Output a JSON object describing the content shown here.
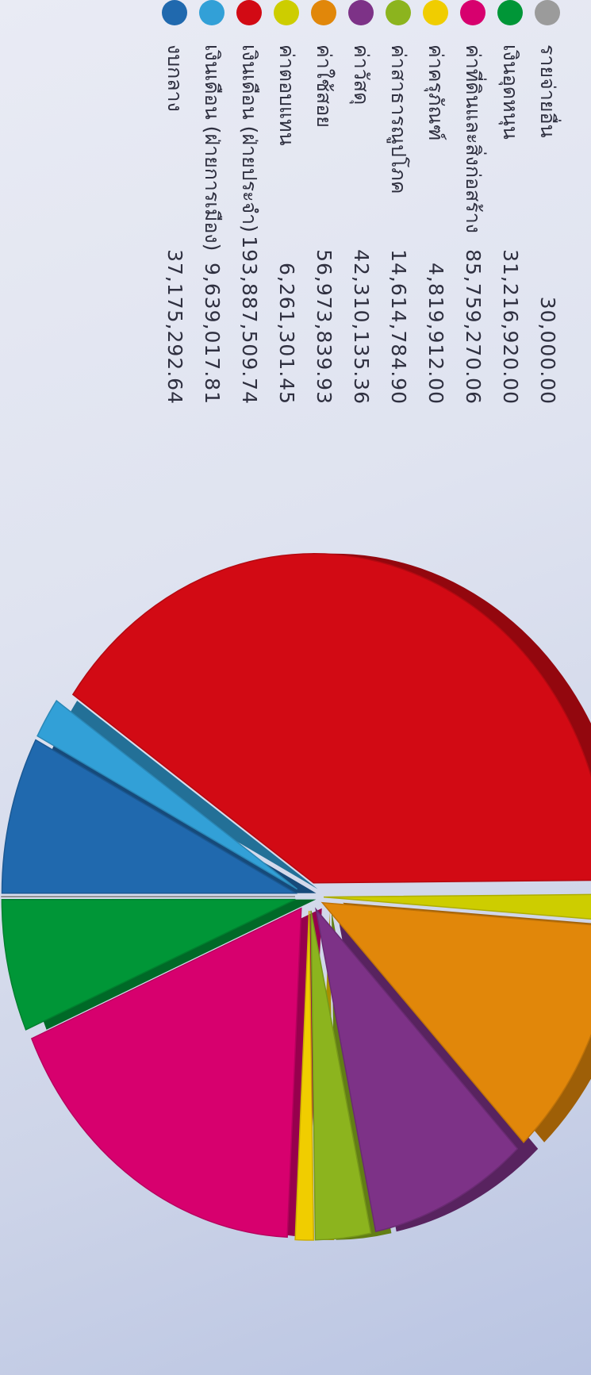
{
  "chart_data": {
    "type": "pie",
    "title": "",
    "legend_position": "right",
    "slices": [
      {
        "label": "งบกลาง",
        "value": 37175292.64,
        "value_text": "37,175,292.64",
        "color": "#2069ae"
      },
      {
        "label": "เงินเดือน (ฝ่ายการเมือง)",
        "value": 9639017.81,
        "value_text": "9,639,017.81",
        "color": "#32a0d7"
      },
      {
        "label": "เงินเดือน (ฝ่ายประจำ)",
        "value": 193887509.74,
        "value_text": "193,887,509.74",
        "color": "#d20a14"
      },
      {
        "label": "ค่าตอบแทน",
        "value": 6261301.45,
        "value_text": "6,261,301.45",
        "color": "#cdcd00"
      },
      {
        "label": "ค่าใช้สอย",
        "value": 56973839.93,
        "value_text": "56,973,839.93",
        "color": "#e1870a"
      },
      {
        "label": "ค่าวัสดุ",
        "value": 42310135.36,
        "value_text": "42,310,135.36",
        "color": "#7d3287"
      },
      {
        "label": "ค่าสาธารณูปโภค",
        "value": 14614784.9,
        "value_text": "14,614,784.90",
        "color": "#8cb41e"
      },
      {
        "label": "ค่าครุภัณฑ์",
        "value": 4819912.0,
        "value_text": "4,819,912.00",
        "color": "#f0cd00"
      },
      {
        "label": "ค่าที่ดินและสิ่งก่อสร้าง",
        "value": 85759270.06,
        "value_text": "85,759,270.06",
        "color": "#d7006e"
      },
      {
        "label": "เงินอุดหนุน",
        "value": 31216920.0,
        "value_text": "31,216,920.00",
        "color": "#009637"
      },
      {
        "label": "รายจ่ายอื่น",
        "value": 30000.0,
        "value_text": "30,000.00",
        "color": "#9b9b9b"
      }
    ]
  }
}
